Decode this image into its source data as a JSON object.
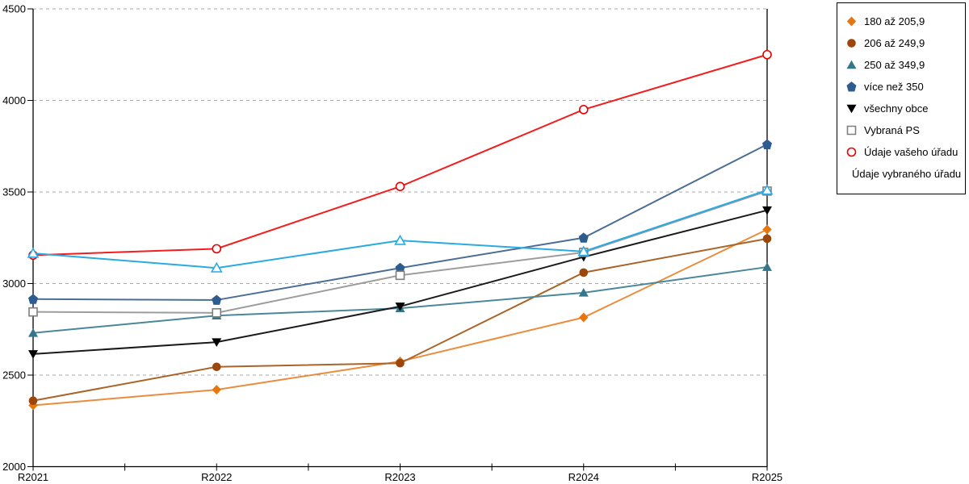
{
  "chart_data": {
    "type": "line",
    "title": "",
    "categories": [
      "R2021",
      "R2022",
      "R2023",
      "R2024",
      "R2025"
    ],
    "ylim": [
      2000,
      4500
    ],
    "yticks": [
      2000,
      2500,
      3000,
      3500,
      4000,
      4500
    ],
    "ytick_labels": [
      "2000",
      "2500",
      "3000",
      "3500",
      "4000",
      "4500"
    ],
    "grid": "horizontal-dashed",
    "legend_position": "top-right",
    "axis_color": "#000000",
    "grid_color": "#aaaaaa",
    "background_color": "#ffffff",
    "series": [
      {
        "name": "180 až 205,9",
        "marker": "diamond",
        "style": "filled",
        "line_color": "#ea8c3e",
        "marker_color": "#e8760f",
        "values": [
          2335,
          2420,
          2575,
          2815,
          3295
        ]
      },
      {
        "name": "206 až 249,9",
        "marker": "circle",
        "style": "filled",
        "line_color": "#aa6428",
        "marker_color": "#9c460c",
        "values": [
          2360,
          2545,
          2565,
          3060,
          3245
        ]
      },
      {
        "name": "250 až 349,9",
        "marker": "triangle-up",
        "style": "filled",
        "line_color": "#4a8799",
        "marker_color": "#35768a",
        "values": [
          2730,
          2825,
          2865,
          2950,
          3090
        ]
      },
      {
        "name": "více než 350",
        "marker": "pentagon",
        "style": "filled",
        "line_color": "#4c6d94",
        "marker_color": "#2e5c8f",
        "values": [
          2915,
          2910,
          3085,
          3250,
          3760
        ]
      },
      {
        "name": "všechny obce",
        "marker": "triangle-down",
        "style": "filled",
        "line_color": "#1a1a1a",
        "marker_color": "#000000",
        "values": [
          2615,
          2680,
          2875,
          3145,
          3400
        ]
      },
      {
        "name": "Vybraná PS",
        "marker": "square",
        "style": "open",
        "line_color": "#9d9d9d",
        "marker_color": "#7f7f7f",
        "values": [
          2845,
          2840,
          3045,
          3170,
          3505
        ]
      },
      {
        "name": "Údaje vašeho úřadu",
        "marker": "circle",
        "style": "open",
        "line_color": "#f21d1d",
        "marker_color": "#e60000",
        "values": [
          3155,
          3190,
          3530,
          3950,
          4250
        ]
      },
      {
        "name": "Údaje vybraného úřadu",
        "marker": "triangle-up",
        "style": "open",
        "line_color": "#2baae1",
        "marker_color": "#2baae1",
        "values": [
          3165,
          3085,
          3235,
          3175,
          3510
        ]
      }
    ]
  }
}
